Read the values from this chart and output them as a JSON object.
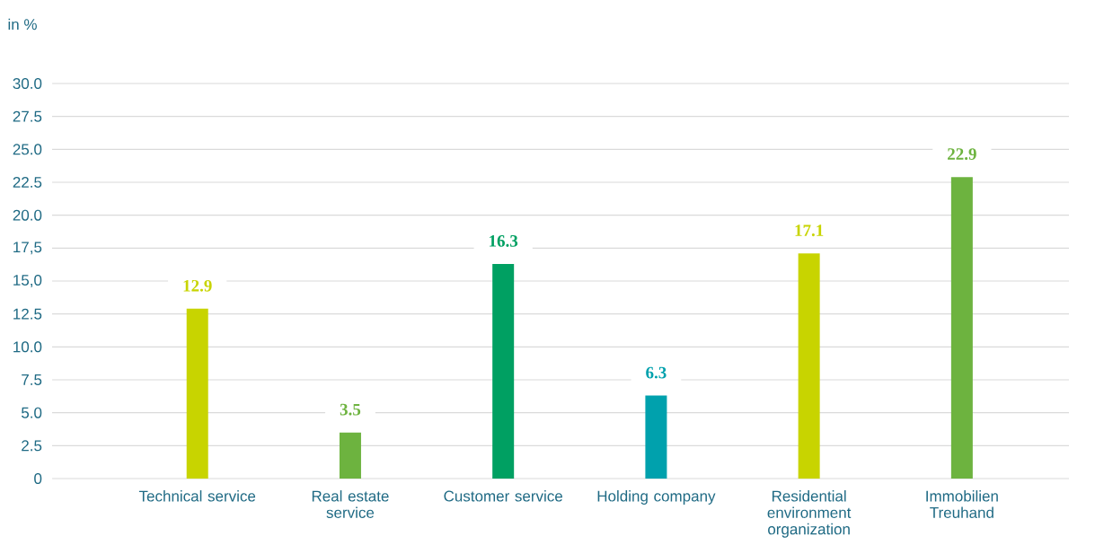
{
  "chart_data": {
    "type": "bar",
    "ylabel": "in %",
    "categories": [
      "Technical service",
      "Real estate service",
      "Customer service",
      "Holding company",
      "Residential environment organization",
      "Immobilien Treuhand"
    ],
    "values": [
      12.9,
      3.5,
      16.3,
      6.3,
      17.1,
      22.9
    ],
    "colors": [
      "#c8d400",
      "#6db33f",
      "#00a062",
      "#00a1ad",
      "#c8d400",
      "#6db33f"
    ],
    "data_labels": true,
    "ylim": [
      0,
      30
    ],
    "yticks": [
      0,
      2.5,
      {
        "value": 5,
        "label": "5.0"
      },
      7.5,
      {
        "value": 10,
        "label": "10.0"
      },
      12.5,
      {
        "value": 15,
        "label": "15,0"
      },
      {
        "value": 17.5,
        "label": "17,5"
      },
      {
        "value": 20,
        "label": "20.0"
      },
      22.5,
      {
        "value": 25,
        "label": "25.0"
      },
      27.5,
      {
        "value": 30,
        "label": "30.0"
      }
    ],
    "grid": "y"
  }
}
